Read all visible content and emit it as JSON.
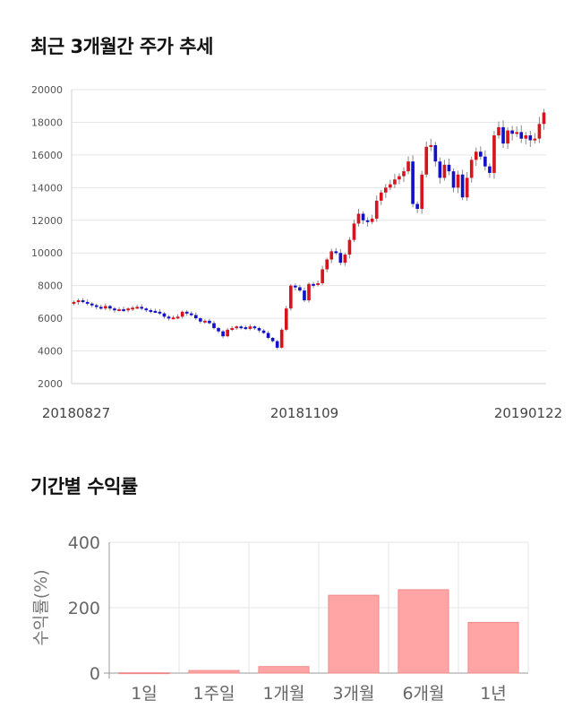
{
  "sections": {
    "price_title": "최근 3개월간 주가 추세",
    "returns_title": "기간별 수익률"
  },
  "colors": {
    "up": "#d7141e",
    "down": "#1111cc",
    "bar": "#ffa5a5",
    "bar_border": "#f08a8a",
    "grid": "#e6e6e6"
  },
  "chart_data": [
    {
      "type": "candlestick",
      "title": "최근 3개월간 주가 추세",
      "ylim": [
        2000,
        20000
      ],
      "yticks": [
        "20000",
        "18000",
        "16000",
        "14000",
        "12000",
        "10000",
        "8000",
        "6000",
        "4000",
        "2000"
      ],
      "xtick_labels": [
        "20180827",
        "20181109",
        "20190122"
      ],
      "grid": true,
      "closes": [
        7000,
        7100,
        7000,
        6900,
        6800,
        6700,
        6600,
        6750,
        6600,
        6500,
        6550,
        6500,
        6600,
        6650,
        6700,
        6600,
        6500,
        6450,
        6400,
        6300,
        6100,
        6000,
        6050,
        6100,
        6400,
        6300,
        6200,
        6000,
        5800,
        5850,
        5700,
        5400,
        5200,
        4900,
        5300,
        5400,
        5500,
        5450,
        5350,
        5500,
        5400,
        5250,
        5100,
        4800,
        4600,
        4200,
        5300,
        6600,
        8000,
        7900,
        7700,
        7100,
        8100,
        8050,
        8150,
        9000,
        9600,
        10100,
        10000,
        9400,
        9900,
        10800,
        11800,
        12400,
        12000,
        11900,
        12100,
        13200,
        13700,
        14000,
        14200,
        14500,
        14700,
        15000,
        15600,
        13000,
        12700,
        14800,
        16500,
        16600,
        15600,
        14600,
        15400,
        15000,
        14000,
        14800,
        13400,
        14600,
        15700,
        16200,
        15900,
        15300,
        14900,
        17200,
        17700,
        16700,
        17500,
        17300,
        17400,
        17000,
        17200,
        16900,
        17000,
        17900,
        18600
      ],
      "series": [
        {
          "name": "",
          "values": []
        }
      ]
    },
    {
      "type": "bar",
      "title": "기간별 수익률",
      "ylabel": "수익률(%)",
      "ylim": [
        0,
        400
      ],
      "yticks": [
        "400",
        "200",
        "0"
      ],
      "categories": [
        "1일",
        "1주일",
        "1개월",
        "3개월",
        "6개월",
        "1년"
      ],
      "values": [
        1.0,
        8.0,
        20.0,
        238.0,
        255.0,
        155.0
      ]
    }
  ]
}
